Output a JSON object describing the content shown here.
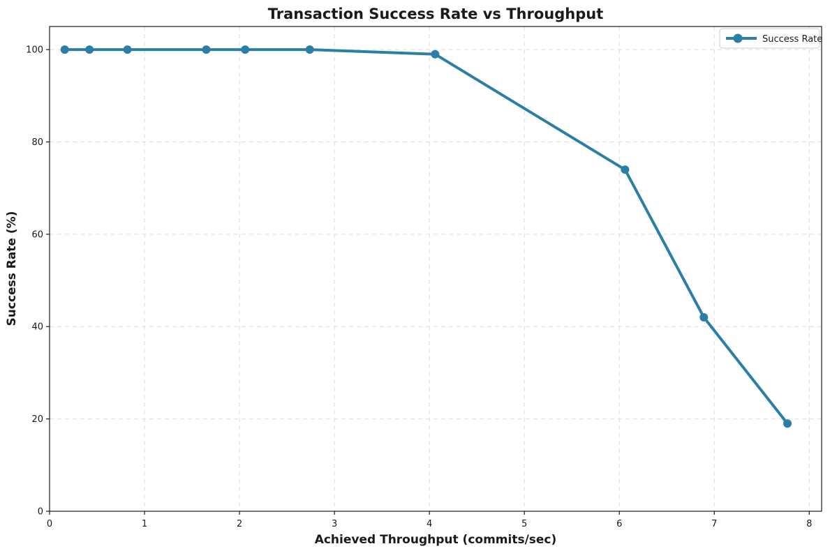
{
  "figure": {
    "background": "#ffffff",
    "text_color": "#1a1a1a"
  },
  "chart_data": {
    "type": "line",
    "title": "Transaction Success Rate vs Throughput",
    "xlabel": "Achieved Throughput (commits/sec)",
    "ylabel": "Success Rate (%)",
    "series": [
      {
        "name": "Success Rate",
        "color": "#2b7fa6",
        "marker": "circle",
        "marker_radius": 6,
        "line_width": 4,
        "x": [
          0.16,
          0.42,
          0.82,
          1.65,
          2.06,
          2.74,
          4.06,
          6.06,
          6.89,
          7.77
        ],
        "y": [
          100,
          100,
          100,
          100,
          100,
          100,
          99,
          74,
          42,
          19
        ]
      }
    ],
    "xlim": [
      0,
      8.13
    ],
    "ylim": [
      0,
      105
    ],
    "xticks": [
      0,
      1,
      2,
      3,
      4,
      5,
      6,
      7,
      8
    ],
    "yticks": [
      0,
      20,
      40,
      60,
      80,
      100
    ],
    "grid": true,
    "grid_style": "dashed",
    "grid_color": "#dddddd",
    "spine_color": "#1a1a1a",
    "legend": {
      "position": "upper right",
      "entries": [
        "Success Rate"
      ],
      "border_color": "#cccccc",
      "background": "#ffffff"
    }
  }
}
